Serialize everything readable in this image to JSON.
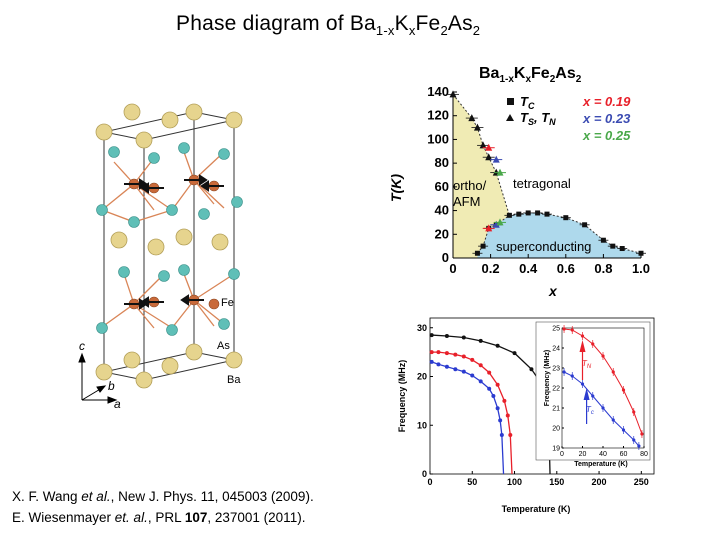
{
  "slide": {
    "title_prefix": "Phase diagram of Ba",
    "title_sub1": "1-x",
    "title_k": "K",
    "title_sub2": "x",
    "title_fe": "Fe",
    "title_sub3": "2",
    "title_as": "As",
    "title_sub4": "2"
  },
  "crystal": {
    "labels": {
      "fe": "Fe",
      "as": "As",
      "ba": "Ba",
      "axis_c": "c",
      "axis_b": "b",
      "axis_a": "a"
    },
    "colors": {
      "ba": "#e6d48e",
      "as": "#5fbfb7",
      "fe": "#c96a3a",
      "bond": "#d98557"
    }
  },
  "phase_diagram": {
    "title": {
      "ba": "Ba",
      "sub1": "1-x",
      "k": "K",
      "sub2": "x",
      "fe": "Fe",
      "sub3": "2",
      "as": "As",
      "sub4": "2"
    },
    "ylabel": "T(K)",
    "xlabel": "x",
    "legend": {
      "tc": "T",
      "tc_sub": "C",
      "ts": "T",
      "ts_sub": "S",
      "comma": ", ",
      "tn": "T",
      "tn_sub": "N",
      "x019": "x = 0.19",
      "x023": "x = 0.23",
      "x025": "x = 0.25"
    },
    "regions": {
      "ortho": "ortho/",
      "afm": "AFM",
      "tetragonal": "tetragonal",
      "superconducting": "superconducting"
    },
    "colors": {
      "afm_fill": "#f0ebb4",
      "sc_fill": "#aed9ec",
      "red": "#e8202a",
      "blue": "#3b4bb2",
      "green": "#4aa84a"
    }
  },
  "nmr": {
    "ylabel": "Frequency (MHz)",
    "xlabel": "Temperature (K)",
    "inset_ylabel": "Frequency (MHz)",
    "inset_xlabel": "Temperature (K)",
    "tn_label": "T",
    "tn_sub": "N",
    "tc_label": "T",
    "tc_sub": "c",
    "colors": {
      "black": "#111111",
      "red": "#e8202a",
      "blue": "#2b3bd0"
    }
  },
  "chart_data": [
    {
      "type": "scatter",
      "title": "Ba1-xKxFe2As2",
      "xlabel": "x",
      "ylabel": "T(K)",
      "xlim": [
        0,
        1.0
      ],
      "ylim": [
        0,
        140
      ],
      "x_ticks": [
        "0",
        "0.2",
        "0.4",
        "0.6",
        "0.8",
        "1.0"
      ],
      "y_ticks": [
        "0",
        "20",
        "40",
        "60",
        "80",
        "100",
        "120",
        "140"
      ],
      "series": [
        {
          "name": "Tc",
          "marker": "square",
          "x": [
            0.13,
            0.16,
            0.19,
            0.23,
            0.3,
            0.35,
            0.4,
            0.45,
            0.5,
            0.6,
            0.7,
            0.8,
            0.85,
            0.9,
            1.0
          ],
          "y": [
            4,
            10,
            25,
            28,
            36,
            37,
            38,
            38,
            37,
            34,
            28,
            15,
            10,
            8,
            4
          ]
        },
        {
          "name": "TS, TN",
          "marker": "triangle",
          "x": [
            0.0,
            0.1,
            0.13,
            0.16,
            0.19,
            0.23
          ],
          "y": [
            138,
            118,
            110,
            95,
            85,
            72
          ]
        },
        {
          "name": "x = 0.19",
          "marker": "point",
          "x": [
            0.19,
            0.19
          ],
          "y": [
            93,
            25
          ]
        },
        {
          "name": "x = 0.23",
          "marker": "point",
          "x": [
            0.23,
            0.23
          ],
          "y": [
            83,
            28
          ]
        },
        {
          "name": "x = 0.25",
          "marker": "point",
          "x": [
            0.25,
            0.25
          ],
          "y": [
            72,
            30
          ]
        }
      ]
    },
    {
      "type": "line",
      "xlabel": "Temperature (K)",
      "ylabel": "Frequency (MHz)",
      "xlim": [
        0,
        265
      ],
      "ylim": [
        0,
        32
      ],
      "x_ticks": [
        "0",
        "50",
        "100",
        "150",
        "200",
        "250"
      ],
      "y_ticks": [
        "0",
        "10",
        "20",
        "30"
      ],
      "series": [
        {
          "color": "black",
          "T_N": 142,
          "x": [
            2,
            20,
            40,
            60,
            80,
            100,
            120,
            130,
            135,
            138,
            140,
            141
          ],
          "y": [
            28.5,
            28.3,
            28,
            27.3,
            26.3,
            24.8,
            21.5,
            19,
            16.5,
            14,
            10,
            7
          ]
        },
        {
          "color": "red",
          "T_N": 97,
          "x": [
            2,
            10,
            20,
            30,
            40,
            50,
            60,
            70,
            80,
            88,
            92,
            95
          ],
          "y": [
            25,
            25,
            24.8,
            24.5,
            24.1,
            23.4,
            22.3,
            20.8,
            18.3,
            15,
            12,
            8
          ]
        },
        {
          "color": "blue",
          "T_N": 87,
          "x": [
            2,
            10,
            20,
            30,
            40,
            50,
            60,
            70,
            75,
            80,
            83,
            85
          ],
          "y": [
            23,
            22.5,
            22,
            21.5,
            21,
            20.2,
            19,
            17.5,
            16,
            13.5,
            11,
            8
          ]
        }
      ]
    },
    {
      "type": "line",
      "xlabel": "Temperature (K)",
      "ylabel": "Frequency (MHz)",
      "xlim": [
        0,
        80
      ],
      "ylim": [
        19,
        25
      ],
      "x_ticks": [
        "0",
        "20",
        "40",
        "60",
        "80"
      ],
      "y_ticks": [
        "19",
        "20",
        "21",
        "22",
        "23",
        "24",
        "25"
      ],
      "series": [
        {
          "color": "red",
          "x": [
            2,
            10,
            20,
            30,
            40,
            50,
            60,
            70,
            78
          ],
          "y": [
            24.95,
            24.9,
            24.6,
            24.2,
            23.6,
            22.8,
            21.9,
            20.8,
            19.7
          ]
        },
        {
          "color": "blue",
          "x": [
            2,
            10,
            20,
            30,
            40,
            50,
            60,
            70,
            75
          ],
          "y": [
            22.8,
            22.6,
            22.2,
            21.6,
            21.0,
            20.4,
            19.9,
            19.4,
            19.1
          ]
        }
      ]
    }
  ],
  "references": {
    "r1_author": "X. F. Wang",
    "r1_etal": "et al.",
    "r1_rest": ", New J. Phys. 11, 045003 (2009).",
    "r2_author": "E. Wiesenmayer",
    "r2_etal": "et. al.",
    "r2_mid": ", PRL ",
    "r2_vol": "107",
    "r2_rest": ", 237001 (2011)."
  }
}
